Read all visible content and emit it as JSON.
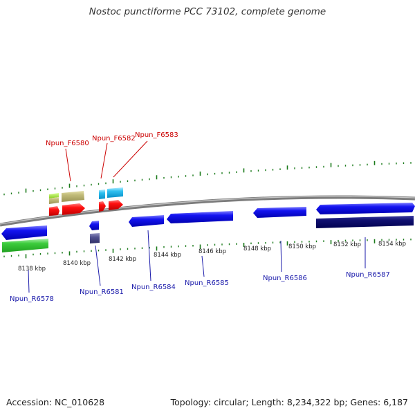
{
  "title": "Nostoc punctiforme PCC 73102, complete genome",
  "footer": {
    "accession": "Accession: NC_010628",
    "topology": "Topology: circular; Length: 8,234,322 bp; Genes: 6,187"
  },
  "colors": {
    "forward_label": "#cc0000",
    "reverse_label": "#1a1aaa",
    "tick": "#1a7a1a",
    "backbone": "#8a8a8a"
  },
  "scale_labels": [
    "8138 kbp",
    "8140 kbp",
    "8142 kbp",
    "8144 kbp",
    "8146 kbp",
    "8148 kbp",
    "8150 kbp",
    "8152 kbp",
    "8154 kbp"
  ],
  "forward_genes": [
    "Npun_F6580",
    "Npun_F6582",
    "Npun_F6583"
  ],
  "reverse_genes": [
    "Npun_R6578",
    "Npun_R6581",
    "Npun_R6584",
    "Npun_R6585",
    "Npun_R6586",
    "Npun_R6587"
  ]
}
